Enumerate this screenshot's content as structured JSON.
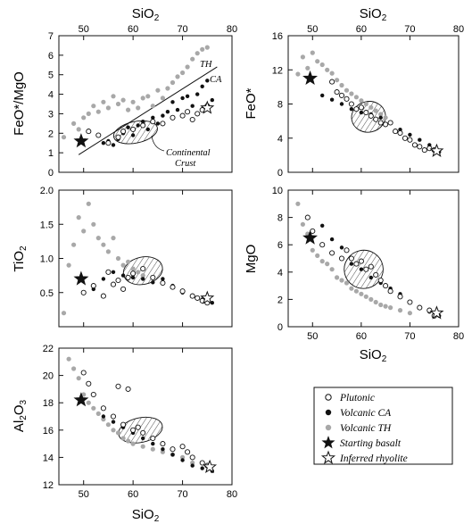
{
  "colors": {
    "volcanic_th": "#a8a8a8",
    "volcanic_ca": "#111111",
    "plutonic_fill": "#ffffff",
    "axis": "#111111"
  },
  "legend": {
    "plutonic": "Plutonic",
    "volcanic_ca": "Volcanic CA",
    "volcanic_th": "Volcanic TH",
    "starting_basalt": "Starting basalt",
    "inferred_rhyolite": "Inferred rhyolite"
  },
  "chart_data": [
    {
      "type": "scatter",
      "panel": "FeO*/MgO vs SiO2",
      "xlabel": "SiO2",
      "ylabel": "FeO*/MgO",
      "xlim": [
        45,
        80
      ],
      "ylim": [
        0,
        7
      ],
      "xticks": [
        50,
        60,
        70,
        80
      ],
      "yticks": [
        0,
        1,
        2,
        3,
        4,
        5,
        6,
        7
      ],
      "x_axis_labels_on": "top",
      "divider_line": {
        "x": [
          49,
          77
        ],
        "y": [
          0.9,
          5.4
        ],
        "label_above": "TH",
        "label_below": "CA"
      },
      "annotation": {
        "text_line1": "Continental",
        "text_line2": "Crust",
        "x": 63,
        "y": 1.0
      },
      "starting_basalt": [
        49.5,
        1.6
      ],
      "inferred_rhyolite": [
        75,
        3.3
      ],
      "crust_field": {
        "center": [
          60.5,
          2.05
        ],
        "rx": 4.5,
        "ry": 0.55
      },
      "series": [
        {
          "name": "Volcanic TH",
          "x": [
            46,
            48,
            49,
            50,
            51,
            52,
            53,
            54,
            55,
            56,
            57,
            58,
            59,
            60,
            61,
            62,
            63,
            64,
            65,
            66,
            67,
            68,
            69,
            70,
            71,
            72,
            73,
            74,
            75
          ],
          "y": [
            1.8,
            2.5,
            2.2,
            2.8,
            3.0,
            3.4,
            3.1,
            3.6,
            3.3,
            3.9,
            3.5,
            3.7,
            3.2,
            3.6,
            3.3,
            3.8,
            3.9,
            3.4,
            4.2,
            3.8,
            4.3,
            4.6,
            4.9,
            5.1,
            5.4,
            5.8,
            6.1,
            6.3,
            6.4
          ]
        },
        {
          "name": "Volcanic CA",
          "x": [
            54,
            55,
            56,
            57,
            58,
            59,
            60,
            61,
            62,
            63,
            64,
            65,
            66,
            67,
            68,
            69,
            70,
            71,
            72,
            73,
            74,
            75,
            76
          ],
          "y": [
            1.5,
            1.6,
            1.4,
            1.7,
            2.0,
            2.3,
            1.9,
            2.4,
            2.6,
            2.2,
            2.8,
            2.5,
            2.9,
            3.1,
            3.6,
            3.2,
            3.8,
            3.9,
            3.4,
            4.0,
            4.4,
            4.7,
            3.7
          ]
        },
        {
          "name": "Plutonic",
          "x": [
            51,
            53,
            55,
            57,
            58,
            60,
            62,
            64,
            66,
            68,
            70,
            71,
            72,
            73,
            74,
            75
          ],
          "y": [
            2.1,
            1.9,
            1.5,
            1.8,
            2.1,
            2.2,
            2.4,
            2.6,
            2.5,
            2.8,
            2.9,
            3.1,
            2.7,
            3.0,
            3.2,
            3.4
          ]
        }
      ]
    },
    {
      "type": "scatter",
      "panel": "FeO* vs SiO2",
      "xlabel": "SiO2",
      "ylabel": "FeO*",
      "xlim": [
        45,
        80
      ],
      "ylim": [
        0,
        16
      ],
      "xticks": [
        50,
        60,
        70,
        80
      ],
      "yticks": [
        0,
        4,
        8,
        12,
        16
      ],
      "x_axis_labels_on": "top",
      "starting_basalt": [
        49.5,
        11
      ],
      "inferred_rhyolite": [
        75.5,
        2.5
      ],
      "crust_field": {
        "center": [
          61.5,
          6.5
        ],
        "rx": 3.5,
        "ry": 1.8
      },
      "series": [
        {
          "name": "Volcanic TH",
          "x": [
            47,
            48,
            49,
            50,
            51,
            52,
            53,
            54,
            55,
            56,
            57,
            58,
            59,
            60,
            61,
            62,
            63,
            64,
            65
          ],
          "y": [
            11.5,
            13.5,
            12.2,
            14.0,
            13.0,
            12.6,
            12.0,
            11.6,
            10.8,
            10.2,
            9.6,
            9.2,
            8.8,
            8.4,
            8.0,
            7.6,
            7.2,
            6.8,
            6.4
          ]
        },
        {
          "name": "Volcanic CA",
          "x": [
            52,
            54,
            56,
            58,
            60,
            62,
            64,
            66,
            68,
            70,
            72,
            74,
            76
          ],
          "y": [
            9.0,
            8.5,
            8.0,
            7.4,
            7.0,
            6.8,
            6.4,
            5.8,
            5.0,
            4.4,
            3.8,
            3.2,
            2.4
          ]
        },
        {
          "name": "Plutonic",
          "x": [
            54,
            55,
            56,
            57,
            58,
            59,
            60,
            61,
            62,
            63,
            64,
            65,
            66,
            67,
            68,
            69,
            70,
            71,
            72,
            73,
            74,
            75
          ],
          "y": [
            10.6,
            9.4,
            9.0,
            8.6,
            8.0,
            7.4,
            7.6,
            7.0,
            6.6,
            6.2,
            5.8,
            5.6,
            5.8,
            4.8,
            4.6,
            4.0,
            3.8,
            3.2,
            3.0,
            2.6,
            2.8,
            2.6
          ]
        }
      ]
    },
    {
      "type": "scatter",
      "panel": "TiO2 vs SiO2",
      "xlabel": "",
      "ylabel": "TiO2",
      "xlim": [
        45,
        80
      ],
      "ylim": [
        0,
        2.0
      ],
      "xticks": [
        50,
        60,
        70,
        80
      ],
      "yticks": [
        0.5,
        1.0,
        1.5,
        2.0
      ],
      "ytick_labels": [
        "0.5",
        "1.0",
        "1.5",
        "2.0"
      ],
      "x_axis_labels_on": "none",
      "starting_basalt": [
        49.5,
        0.7
      ],
      "inferred_rhyolite": [
        75,
        0.42
      ],
      "crust_field": {
        "center": [
          62,
          0.82
        ],
        "rx": 4.0,
        "ry": 0.2
      },
      "series": [
        {
          "name": "Volcanic TH",
          "x": [
            46,
            47,
            48,
            49,
            50,
            51,
            52,
            53,
            54,
            55,
            56,
            57,
            58,
            59,
            60,
            61,
            62
          ],
          "y": [
            0.2,
            0.9,
            1.2,
            1.6,
            1.4,
            1.8,
            1.5,
            1.3,
            1.2,
            1.1,
            1.3,
            1.0,
            0.9,
            0.95,
            0.85,
            0.8,
            0.75
          ]
        },
        {
          "name": "Volcanic CA",
          "x": [
            52,
            54,
            56,
            58,
            60,
            62,
            64,
            66,
            68,
            70,
            72,
            74,
            76
          ],
          "y": [
            0.55,
            0.7,
            0.8,
            0.75,
            0.72,
            0.7,
            0.65,
            0.7,
            0.6,
            0.5,
            0.45,
            0.4,
            0.35
          ]
        },
        {
          "name": "Plutonic",
          "x": [
            50,
            52,
            54,
            55,
            56,
            57,
            58,
            59,
            60,
            62,
            64,
            66,
            68,
            70,
            72,
            73,
            74,
            75
          ],
          "y": [
            0.5,
            0.6,
            0.45,
            0.8,
            0.62,
            0.68,
            0.55,
            0.72,
            0.78,
            0.85,
            0.72,
            0.64,
            0.58,
            0.52,
            0.45,
            0.42,
            0.38,
            0.35
          ]
        }
      ]
    },
    {
      "type": "scatter",
      "panel": "MgO vs SiO2",
      "xlabel": "SiO2",
      "ylabel": "MgO",
      "xlim": [
        45,
        80
      ],
      "ylim": [
        0,
        10
      ],
      "xticks": [
        50,
        60,
        70,
        80
      ],
      "yticks": [
        0,
        2,
        4,
        6,
        8,
        10
      ],
      "x_axis_labels_on": "bottom",
      "starting_basalt": [
        49.5,
        6.5
      ],
      "inferred_rhyolite": [
        75.5,
        1.0
      ],
      "crust_field": {
        "center": [
          60.5,
          4.2
        ],
        "rx": 4.0,
        "ry": 1.4
      },
      "series": [
        {
          "name": "Volcanic TH",
          "x": [
            47,
            48,
            49,
            50,
            51,
            52,
            53,
            54,
            55,
            56,
            57,
            58,
            59,
            60,
            61,
            62,
            63,
            64,
            65,
            66,
            68,
            70
          ],
          "y": [
            9.0,
            7.5,
            6.8,
            5.6,
            5.2,
            4.8,
            4.6,
            4.2,
            3.6,
            3.4,
            3.2,
            2.8,
            2.6,
            2.4,
            2.2,
            2.0,
            1.8,
            1.6,
            1.5,
            1.4,
            1.2,
            1.0
          ]
        },
        {
          "name": "Volcanic CA",
          "x": [
            52,
            54,
            56,
            58,
            60,
            62,
            64,
            66,
            68,
            70,
            72,
            74,
            76
          ],
          "y": [
            7.4,
            6.4,
            5.8,
            4.6,
            4.2,
            3.6,
            3.2,
            2.8,
            2.4,
            1.8,
            1.4,
            1.1,
            0.8
          ]
        },
        {
          "name": "Plutonic",
          "x": [
            49,
            50,
            52,
            54,
            56,
            57,
            58,
            59,
            60,
            61,
            62,
            63,
            64,
            65,
            66,
            68,
            70,
            72,
            74,
            75
          ],
          "y": [
            8.0,
            7.0,
            6.0,
            5.4,
            5.0,
            5.6,
            5.0,
            4.6,
            4.8,
            4.2,
            4.4,
            3.8,
            3.4,
            3.0,
            2.6,
            2.2,
            1.8,
            1.4,
            1.2,
            0.8
          ]
        }
      ]
    },
    {
      "type": "scatter",
      "panel": "Al2O3 vs SiO2",
      "xlabel": "SiO2",
      "ylabel": "Al2O3",
      "xlim": [
        45,
        80
      ],
      "ylim": [
        12,
        22
      ],
      "xticks": [
        50,
        60,
        70,
        80
      ],
      "yticks": [
        12,
        14,
        16,
        18,
        20,
        22
      ],
      "x_axis_labels_on": "bottom",
      "starting_basalt": [
        49.5,
        18.2
      ],
      "inferred_rhyolite": [
        75.5,
        13.3
      ],
      "crust_field": {
        "center": [
          61.5,
          16.0
        ],
        "rx": 4.5,
        "ry": 0.9
      },
      "series": [
        {
          "name": "Volcanic TH",
          "x": [
            47,
            48,
            49,
            50,
            51,
            52,
            53,
            54,
            55,
            56,
            57,
            58,
            59,
            60,
            62,
            64,
            66,
            68,
            70,
            72
          ],
          "y": [
            21.2,
            20.5,
            19.8,
            18.6,
            18.0,
            17.6,
            17.2,
            16.8,
            16.4,
            16.0,
            15.8,
            15.4,
            15.2,
            15.0,
            14.8,
            14.6,
            14.4,
            14.2,
            14.0,
            13.6
          ]
        },
        {
          "name": "Volcanic CA",
          "x": [
            54,
            56,
            58,
            60,
            62,
            64,
            66,
            68,
            70,
            72,
            74,
            76
          ],
          "y": [
            17.0,
            16.6,
            16.2,
            15.8,
            15.4,
            15.0,
            14.6,
            14.2,
            13.8,
            13.4,
            13.2,
            13.0
          ]
        },
        {
          "name": "Plutonic",
          "x": [
            50,
            51,
            52,
            54,
            56,
            57,
            58,
            59,
            60,
            61,
            62,
            64,
            66,
            68,
            70,
            71,
            72,
            74,
            75
          ],
          "y": [
            20.2,
            19.4,
            18.6,
            17.6,
            17.0,
            19.2,
            16.4,
            19.0,
            16.0,
            16.2,
            15.8,
            15.4,
            15.0,
            14.6,
            14.8,
            14.4,
            14.0,
            13.6,
            13.4
          ]
        }
      ]
    }
  ]
}
